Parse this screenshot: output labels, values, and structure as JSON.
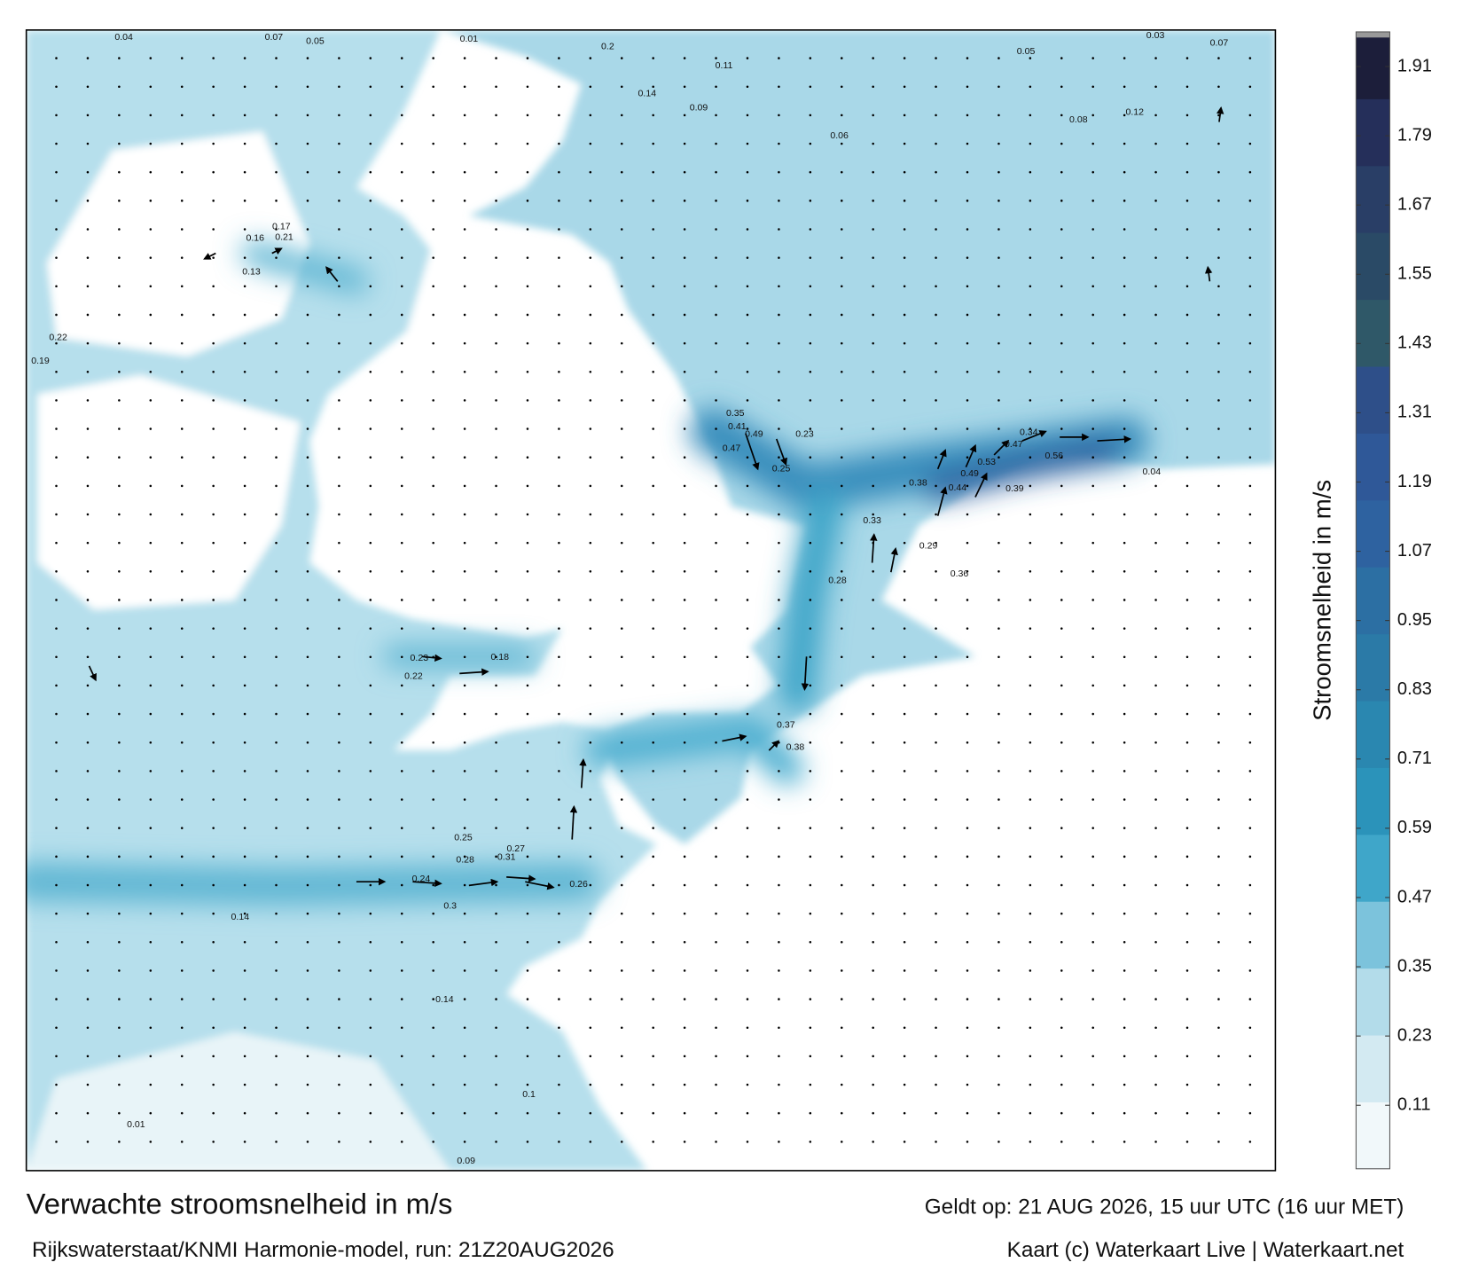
{
  "map": {
    "title": "Verwachte stroomsnelheid in m/s",
    "subtitle": "Rijkswaterstaat/KNMI Harmonie-model, run: 21Z20AUG2026",
    "valid_time": "Geldt op: 21 AUG 2026, 15 uur UTC (16 uur MET)",
    "credit": "Kaart (c) Waterkaart Live | Waterkaart.net",
    "labels": [
      0.04,
      0.07,
      0.05,
      0.01,
      0.2,
      0.11,
      0.05,
      0.03,
      0.07,
      0.14,
      0.09,
      0.06,
      0.08,
      0.12,
      0.17,
      0.21,
      0.16,
      0.13,
      0.22,
      0.19,
      0.35,
      0.41,
      0.49,
      0.47,
      0.23,
      0.25,
      0.34,
      0.47,
      0.53,
      0.56,
      0.49,
      0.38,
      0.44,
      0.39,
      0.33,
      0.29,
      0.36,
      0.28,
      0.23,
      0.18,
      0.22,
      0.37,
      0.38,
      0.25,
      0.28,
      0.31,
      0.27,
      0.24,
      0.26,
      0.3,
      0.14,
      0.14,
      0.09,
      0.01,
      0.1,
      0.04
    ]
  },
  "colorbar": {
    "label": "Stroomsnelheid in m/s",
    "lim": [
      0,
      1.97
    ],
    "ticks": [
      0.11,
      0.23,
      0.35,
      0.47,
      0.59,
      0.71,
      0.83,
      0.95,
      1.07,
      1.19,
      1.31,
      1.43,
      1.55,
      1.67,
      1.79,
      1.91
    ],
    "colors": [
      "#f1f8fa",
      "#d3eaf2",
      "#b3dcea",
      "#7cc3dc",
      "#3fa6c9",
      "#2b93ba",
      "#2a87b0",
      "#2b7aa7",
      "#2c6fa3",
      "#2e62a0",
      "#2f5898",
      "#2e4f89",
      "#2f5868",
      "#2a4a66",
      "#293e66",
      "#252f5a",
      "#1c1e3a"
    ]
  }
}
